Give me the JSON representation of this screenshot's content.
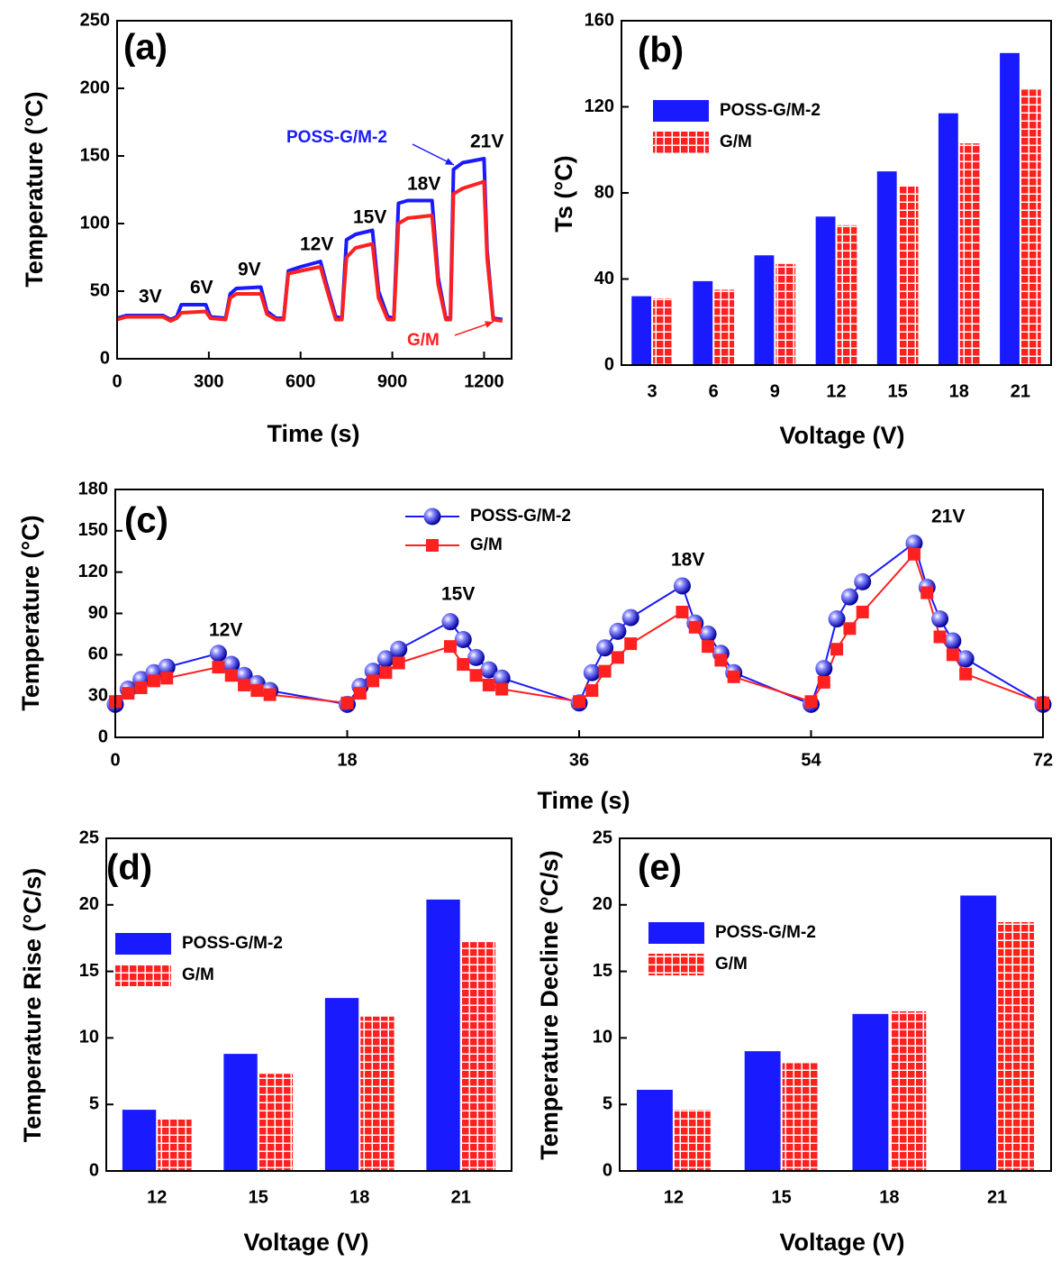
{
  "chart_data": [
    {
      "type": "line",
      "x_label": "Time (s)",
      "y_label": "Temperature (°C)",
      "annotations": [
        "(a)",
        "3V",
        "6V",
        "9V",
        "12V",
        "15V",
        "18V",
        "21V"
      ],
      "xlim": [
        0,
        1290
      ],
      "xticks": [
        0,
        300,
        600,
        900,
        1200
      ],
      "ylim": [
        0,
        250
      ],
      "yticks": [
        0,
        50,
        100,
        150,
        200,
        250
      ],
      "x": [
        0,
        30,
        150,
        175,
        195,
        210,
        290,
        305,
        355,
        370,
        390,
        470,
        490,
        520,
        545,
        560,
        600,
        665,
        685,
        715,
        735,
        750,
        780,
        835,
        855,
        885,
        905,
        920,
        950,
        1030,
        1050,
        1075,
        1090,
        1100,
        1130,
        1200,
        1210,
        1230,
        1260
      ],
      "series": [
        {
          "name": "POSS-G/M-2",
          "color": "#1a1aff",
          "values": [
            30,
            32,
            32,
            29,
            31,
            40,
            40,
            31,
            30,
            48,
            52,
            53,
            35,
            30,
            30,
            65,
            68,
            72,
            55,
            31,
            30,
            88,
            92,
            95,
            50,
            31,
            30,
            115,
            117,
            117,
            60,
            30,
            30,
            140,
            145,
            148,
            80,
            30,
            29
          ]
        },
        {
          "name": "G/M",
          "color": "#ff2020",
          "values": [
            29,
            31,
            31,
            28,
            30,
            34,
            35,
            30,
            29,
            45,
            48,
            48,
            33,
            29,
            29,
            63,
            65,
            68,
            52,
            29,
            29,
            75,
            82,
            85,
            45,
            29,
            29,
            100,
            104,
            106,
            55,
            29,
            29,
            122,
            126,
            131,
            75,
            29,
            28
          ]
        }
      ]
    },
    {
      "type": "bar",
      "x_label": "Voltage (V)",
      "y_label": "Ts (°C)",
      "annotations": [
        "(b)"
      ],
      "categories": [
        "3",
        "6",
        "9",
        "12",
        "15",
        "18",
        "21"
      ],
      "ylim": [
        0,
        160
      ],
      "yticks": [
        0,
        40,
        80,
        120,
        160
      ],
      "series": [
        {
          "name": "POSS-G/M-2",
          "color": "#1a1aff",
          "values": [
            32,
            39,
            51,
            69,
            90,
            117,
            145
          ]
        },
        {
          "name": "G/M",
          "color": "#ff2020",
          "pattern": "grid",
          "values": [
            31,
            35,
            47,
            65,
            83,
            103,
            128
          ]
        }
      ]
    },
    {
      "type": "line",
      "x_label": "Time (s)",
      "y_label": "Temperature (°C)",
      "annotations": [
        "(c)",
        "12V",
        "15V",
        "18V",
        "21V"
      ],
      "xlim": [
        0,
        72
      ],
      "xticks": [
        0,
        18,
        36,
        54,
        72
      ],
      "ylim": [
        0,
        180
      ],
      "yticks": [
        0,
        30,
        60,
        90,
        120,
        150,
        180
      ],
      "x": [
        0,
        1,
        2,
        3,
        4,
        8,
        9,
        10,
        11,
        12,
        18,
        19,
        20,
        21,
        22,
        26,
        27,
        28,
        29,
        30,
        36,
        37,
        38,
        39,
        40,
        44,
        45,
        46,
        47,
        48,
        54,
        55,
        56,
        57,
        58,
        62,
        63,
        64,
        65,
        66,
        72
      ],
      "series": [
        {
          "name": "POSS-G/M-2",
          "color": "#1a1aff",
          "marker": "sphere",
          "values": [
            24,
            35,
            42,
            47,
            51,
            61,
            53,
            45,
            39,
            34,
            24,
            37,
            48,
            57,
            64,
            84,
            71,
            58,
            49,
            43,
            25,
            47,
            65,
            77,
            87,
            110,
            83,
            75,
            61,
            47,
            24,
            50,
            86,
            102,
            113,
            141,
            109,
            86,
            70,
            57,
            24
          ]
        },
        {
          "name": "G/M",
          "color": "#ff2020",
          "marker": "square",
          "values": [
            26,
            32,
            36,
            41,
            43,
            51,
            45,
            38,
            34,
            31,
            25,
            32,
            41,
            47,
            54,
            66,
            53,
            45,
            38,
            35,
            26,
            34,
            48,
            58,
            68,
            91,
            80,
            66,
            56,
            44,
            26,
            40,
            64,
            79,
            91,
            133,
            105,
            73,
            60,
            46,
            25
          ]
        }
      ]
    },
    {
      "type": "bar",
      "x_label": "Voltage (V)",
      "y_label": "Temperature Rise (°C/s)",
      "annotations": [
        "(d)"
      ],
      "categories": [
        "12",
        "15",
        "18",
        "21"
      ],
      "ylim": [
        0,
        25
      ],
      "yticks": [
        0,
        5,
        10,
        15,
        20,
        25
      ],
      "series": [
        {
          "name": "POSS-G/M-2",
          "color": "#1a1aff",
          "values": [
            4.6,
            8.8,
            13.0,
            20.4
          ]
        },
        {
          "name": "G/M",
          "color": "#ff2020",
          "pattern": "grid",
          "values": [
            3.9,
            7.3,
            11.6,
            17.2
          ]
        }
      ]
    },
    {
      "type": "bar",
      "x_label": "Voltage (V)",
      "y_label": "Temperature Decline (°C/s)",
      "annotations": [
        "(e)"
      ],
      "categories": [
        "12",
        "15",
        "18",
        "21"
      ],
      "ylim": [
        0,
        25
      ],
      "yticks": [
        0,
        5,
        10,
        15,
        20,
        25
      ],
      "series": [
        {
          "name": "POSS-G/M-2",
          "color": "#1a1aff",
          "values": [
            6.1,
            9.0,
            11.8,
            20.7
          ]
        },
        {
          "name": "G/M",
          "color": "#ff2020",
          "pattern": "grid",
          "values": [
            4.6,
            8.1,
            12.0,
            18.7
          ]
        }
      ]
    }
  ]
}
